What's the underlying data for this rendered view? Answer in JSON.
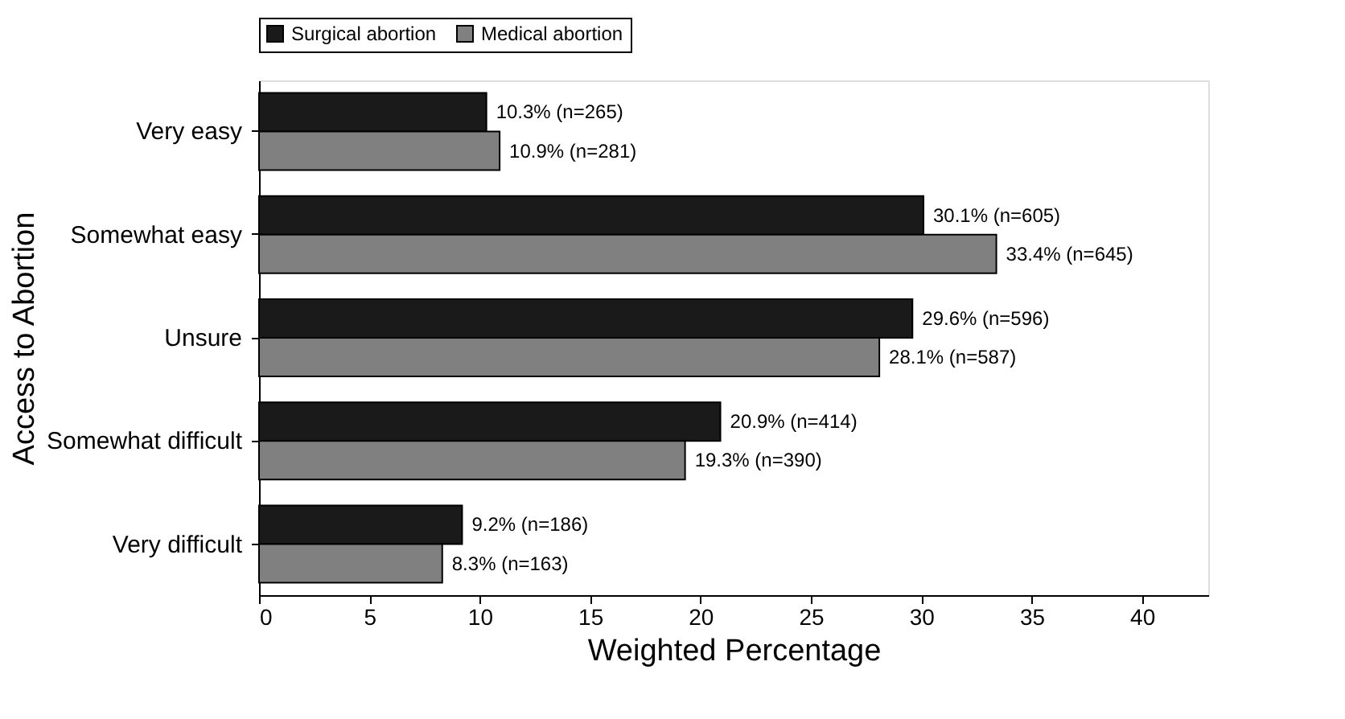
{
  "chart_data": {
    "type": "bar",
    "orientation": "horizontal",
    "xlabel": "Weighted Percentage",
    "ylabel": "Access to Abortion",
    "categories": [
      "Very easy",
      "Somewhat easy",
      "Unsure",
      "Somewhat difficult",
      "Very difficult"
    ],
    "series": [
      {
        "name": "Surgical abortion",
        "color": "#1a1a1a",
        "values": [
          10.3,
          30.1,
          29.6,
          20.9,
          9.2
        ],
        "value_labels": [
          "10.3% (n=265)",
          "30.1% (n=605)",
          "29.6% (n=596)",
          "20.9% (n=414)",
          "9.2% (n=186)"
        ]
      },
      {
        "name": "Medical abortion",
        "color": "#808080",
        "values": [
          10.9,
          33.4,
          28.1,
          19.3,
          8.3
        ],
        "value_labels": [
          "10.9% (n=281)",
          "33.4% (n=645)",
          "28.1% (n=587)",
          "19.3% (n=390)",
          "8.3% (n=163)"
        ]
      }
    ],
    "xlim": [
      0,
      43
    ],
    "xticks": [
      0,
      5,
      10,
      15,
      20,
      25,
      30,
      35,
      40
    ],
    "grid": false,
    "legend": "top"
  }
}
